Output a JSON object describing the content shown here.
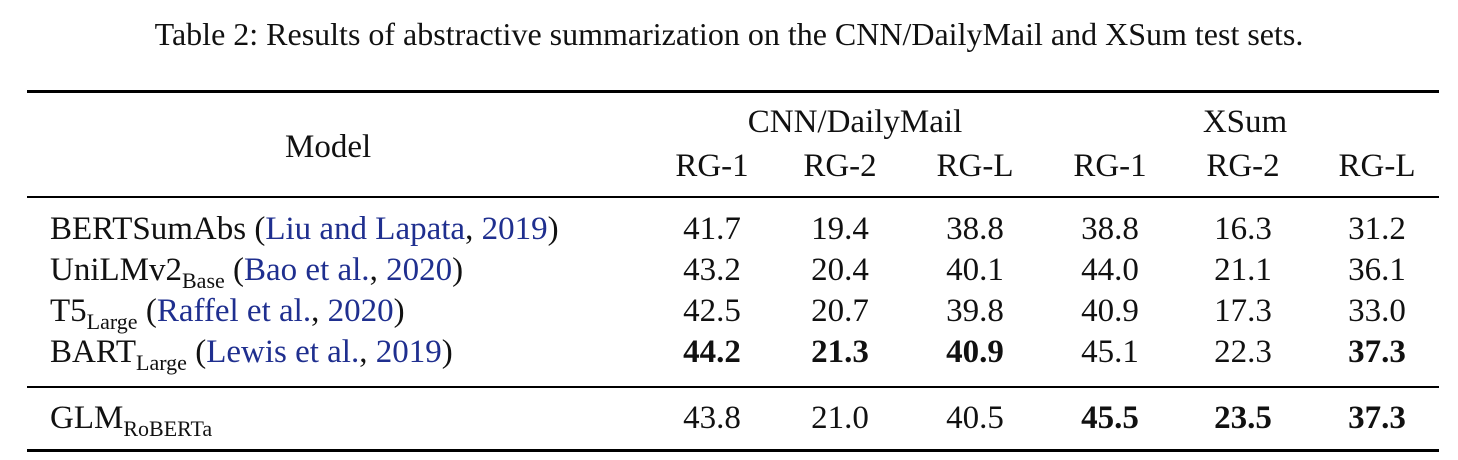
{
  "caption": "Table 2: Results of abstractive summarization on the CNN/DailyMail and XSum test sets.",
  "header": {
    "model": "Model",
    "groups": [
      "CNN/DailyMail",
      "XSum"
    ],
    "metrics": [
      "RG-1",
      "RG-2",
      "RG-L",
      "RG-1",
      "RG-2",
      "RG-L"
    ]
  },
  "rows": [
    {
      "name": "BERTSumAbs",
      "sub": "",
      "cite_open": " (",
      "cite_authors": "Liu and Lapata",
      "cite_sep": ", ",
      "cite_year": "2019",
      "cite_close": ")",
      "values": [
        "41.7",
        "19.4",
        "38.8",
        "38.8",
        "16.3",
        "31.2"
      ],
      "bold": [
        false,
        false,
        false,
        false,
        false,
        false
      ]
    },
    {
      "name": "UniLMv2",
      "sub": "Base",
      "cite_open": " (",
      "cite_authors": "Bao et al.",
      "cite_sep": ", ",
      "cite_year": "2020",
      "cite_close": ")",
      "values": [
        "43.2",
        "20.4",
        "40.1",
        "44.0",
        "21.1",
        "36.1"
      ],
      "bold": [
        false,
        false,
        false,
        false,
        false,
        false
      ]
    },
    {
      "name": "T5",
      "sub": "Large",
      "cite_open": " (",
      "cite_authors": "Raffel et al.",
      "cite_sep": ", ",
      "cite_year": "2020",
      "cite_close": ")",
      "values": [
        "42.5",
        "20.7",
        "39.8",
        "40.9",
        "17.3",
        "33.0"
      ],
      "bold": [
        false,
        false,
        false,
        false,
        false,
        false
      ]
    },
    {
      "name": "BART",
      "sub": "Large",
      "cite_open": " (",
      "cite_authors": "Lewis et al.",
      "cite_sep": ", ",
      "cite_year": "2019",
      "cite_close": ")",
      "values": [
        "44.2",
        "21.3",
        "40.9",
        "45.1",
        "22.3",
        "37.3"
      ],
      "bold": [
        true,
        true,
        true,
        false,
        false,
        true
      ]
    },
    {
      "name": "GLM",
      "sub": "RoBERTa",
      "cite_open": "",
      "cite_authors": "",
      "cite_sep": "",
      "cite_year": "",
      "cite_close": "",
      "values": [
        "43.8",
        "21.0",
        "40.5",
        "45.5",
        "23.5",
        "37.3"
      ],
      "bold": [
        false,
        false,
        false,
        true,
        true,
        true
      ]
    }
  ]
}
